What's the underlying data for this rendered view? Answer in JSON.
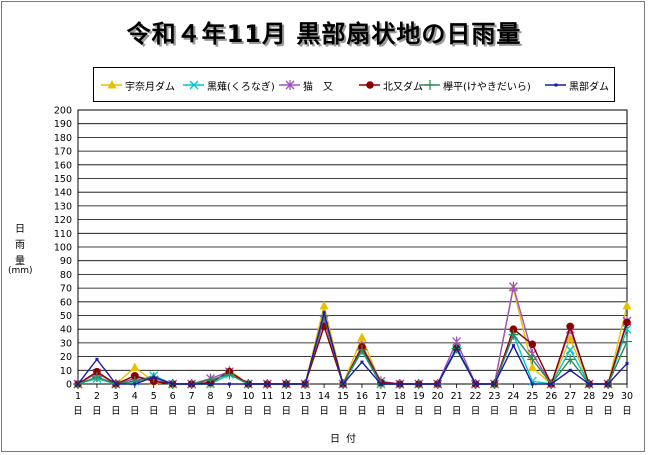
{
  "title": "令和４年11月  黒部扇状地の日雨量",
  "ylabel": "日雨量",
  "yunit": "(mm)",
  "xlabel": "日付",
  "x_suffix": "日",
  "chart_data": {
    "type": "line",
    "title": "令和４年11月  黒部扇状地の日雨量",
    "xlabel": "日付",
    "ylabel": "日雨量 (mm)",
    "ylim": [
      0,
      200
    ],
    "ytick_step": 10,
    "grid": true,
    "legend_position": "top",
    "x": [
      1,
      2,
      3,
      4,
      5,
      6,
      7,
      8,
      9,
      10,
      11,
      12,
      13,
      14,
      15,
      16,
      17,
      18,
      19,
      20,
      21,
      22,
      23,
      24,
      25,
      26,
      27,
      28,
      29,
      30
    ],
    "series": [
      {
        "name": "宇奈月ダム",
        "color": "#e8c000",
        "marker": "triangle",
        "values": [
          0,
          5,
          0,
          12,
          2,
          0,
          0,
          0,
          10,
          0,
          0,
          0,
          0,
          57,
          0,
          34,
          0,
          0,
          0,
          0,
          26,
          0,
          0,
          70,
          12,
          0,
          33,
          0,
          0,
          57
        ]
      },
      {
        "name": "黒薙(くろなぎ)",
        "color": "#00c8c8",
        "marker": "x",
        "values": [
          0,
          4,
          0,
          2,
          6,
          0,
          0,
          0,
          7,
          0,
          0,
          0,
          0,
          47,
          0,
          24,
          0,
          0,
          0,
          0,
          25,
          0,
          0,
          36,
          2,
          0,
          25,
          0,
          0,
          40
        ]
      },
      {
        "name": "猫　又",
        "color": "#a050c0",
        "marker": "star",
        "values": [
          0,
          8,
          0,
          4,
          3,
          0,
          0,
          4,
          9,
          0,
          0,
          0,
          0,
          47,
          0,
          28,
          2,
          0,
          0,
          0,
          31,
          0,
          0,
          71,
          22,
          0,
          40,
          0,
          0,
          46
        ]
      },
      {
        "name": "北又ダム",
        "color": "#8b0000",
        "marker": "circle",
        "values": [
          0,
          9,
          0,
          6,
          2,
          0,
          0,
          1,
          9,
          0,
          0,
          0,
          0,
          42,
          0,
          27,
          1,
          0,
          0,
          0,
          26,
          0,
          0,
          40,
          29,
          0,
          42,
          0,
          0,
          45
        ]
      },
      {
        "name": "欅平(けやきだいら)",
        "color": "#2e8b57",
        "marker": "plus",
        "values": [
          0,
          5,
          0,
          2,
          5,
          0,
          0,
          3,
          7,
          0,
          0,
          0,
          0,
          50,
          0,
          25,
          0,
          0,
          0,
          0,
          26,
          0,
          0,
          36,
          18,
          0,
          18,
          0,
          0,
          31
        ]
      },
      {
        "name": "黒部ダム",
        "color": "#1a1aa8",
        "marker": "dot",
        "values": [
          0,
          18,
          0,
          0,
          5,
          0,
          0,
          0,
          0,
          0,
          0,
          0,
          0,
          52,
          0,
          16,
          0,
          0,
          0,
          0,
          26,
          0,
          0,
          28,
          0,
          0,
          10,
          0,
          0,
          15
        ]
      }
    ]
  }
}
